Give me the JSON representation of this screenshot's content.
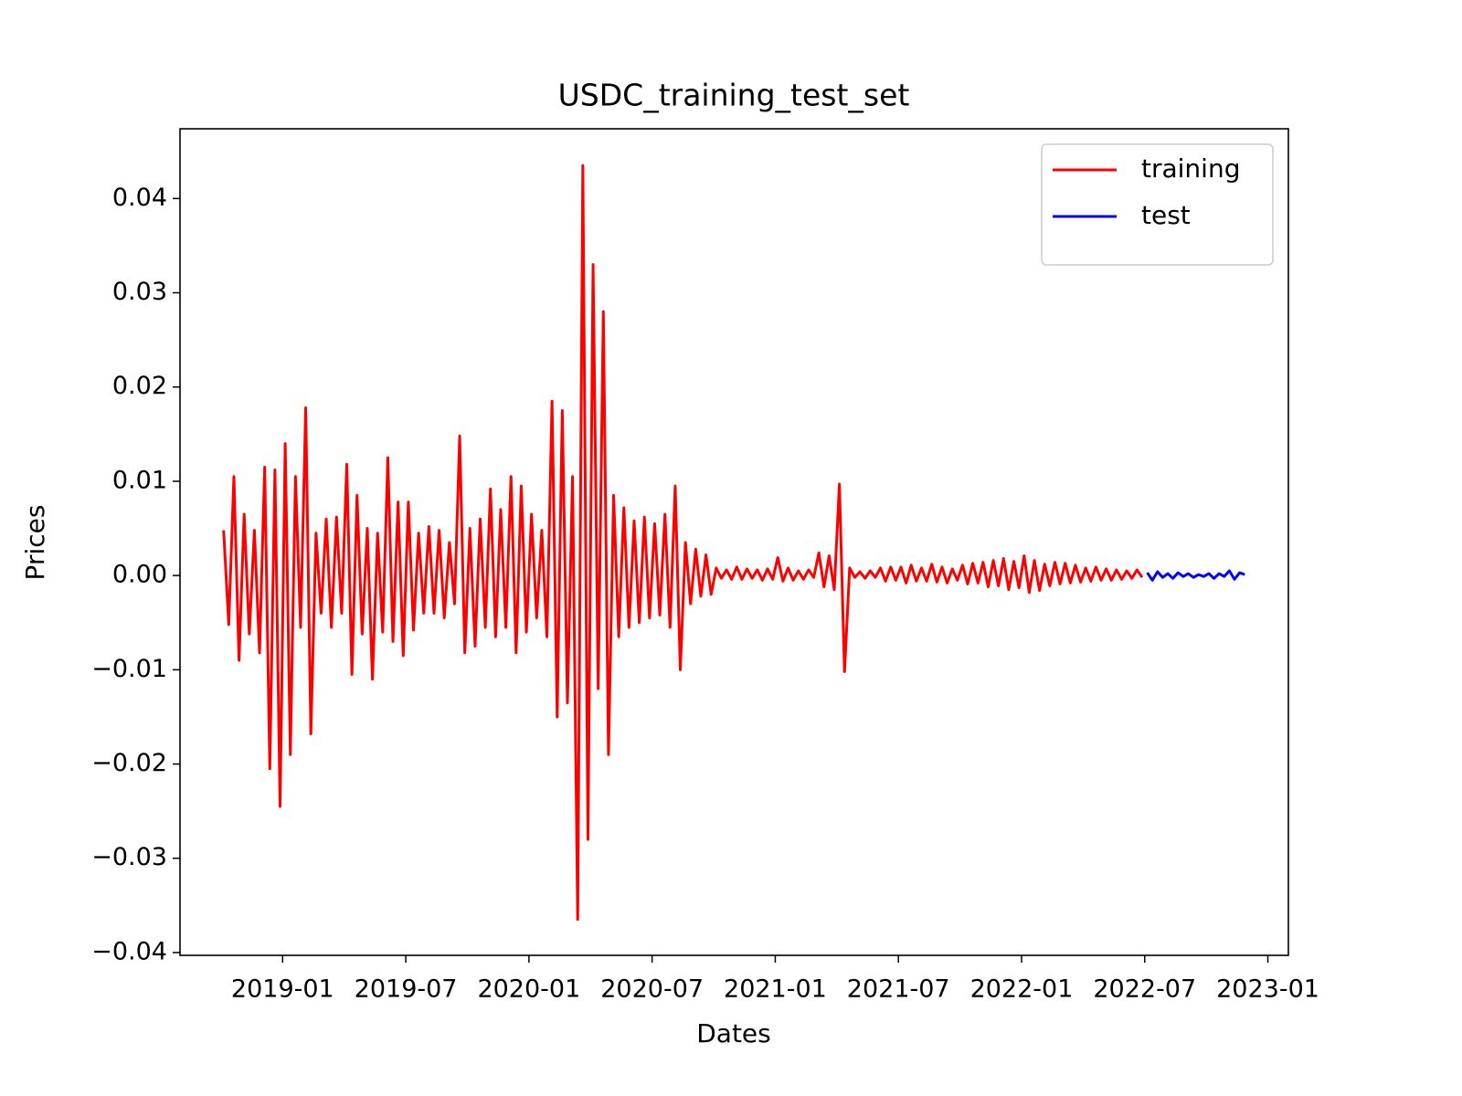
{
  "chart_data": {
    "type": "line",
    "title": "USDC_training_test_set",
    "x_label": "Dates",
    "y_label": "Prices",
    "legend": "upper right",
    "xlim": [
      "2018-08",
      "2023-02"
    ],
    "xticks": [
      "2019-01",
      "2019-07",
      "2020-01",
      "2020-07",
      "2021-01",
      "2021-07",
      "2022-01",
      "2022-07",
      "2023-01"
    ],
    "ylim": [
      -0.0403,
      0.0474
    ],
    "yticks": [
      {
        "value": -0.04,
        "label": "−0.04"
      },
      {
        "value": -0.03,
        "label": "−0.03"
      },
      {
        "value": -0.02,
        "label": "−0.02"
      },
      {
        "value": -0.01,
        "label": "−0.01"
      },
      {
        "value": 0,
        "label": "0.00"
      },
      0.01,
      0.02,
      0.03,
      0.04
    ],
    "series": [
      {
        "name": "training",
        "color": "#ff0000",
        "x": [
          "2018-10",
          "2018-10",
          "2018-10",
          "2018-10",
          "2018-11",
          "2018-11",
          "2018-11",
          "2018-11",
          "2018-12",
          "2018-12",
          "2018-12",
          "2018-12",
          "2019-01",
          "2019-01",
          "2019-01",
          "2019-01",
          "2019-02",
          "2019-02",
          "2019-02",
          "2019-02",
          "2019-03",
          "2019-03",
          "2019-03",
          "2019-03",
          "2019-04",
          "2019-04",
          "2019-04",
          "2019-04",
          "2019-05",
          "2019-05",
          "2019-05",
          "2019-05",
          "2019-06",
          "2019-06",
          "2019-06",
          "2019-06",
          "2019-07",
          "2019-07",
          "2019-07",
          "2019-07",
          "2019-08",
          "2019-08",
          "2019-08",
          "2019-08",
          "2019-09",
          "2019-09",
          "2019-09",
          "2019-09",
          "2019-10",
          "2019-10",
          "2019-10",
          "2019-10",
          "2019-11",
          "2019-11",
          "2019-11",
          "2019-11",
          "2019-12",
          "2019-12",
          "2019-12",
          "2019-12",
          "2020-01",
          "2020-01",
          "2020-01",
          "2020-01",
          "2020-02",
          "2020-02",
          "2020-02",
          "2020-02",
          "2020-03",
          "2020-03",
          "2020-03",
          "2020-03",
          "2020-04",
          "2020-04",
          "2020-04",
          "2020-04",
          "2020-05",
          "2020-05",
          "2020-05",
          "2020-05",
          "2020-06",
          "2020-06",
          "2020-06",
          "2020-06",
          "2020-07",
          "2020-07",
          "2020-07",
          "2020-07",
          "2020-08",
          "2020-08",
          "2020-08",
          "2020-08",
          "2020-09",
          "2020-09",
          "2020-09",
          "2020-09",
          "2020-10",
          "2020-10",
          "2020-10",
          "2020-10",
          "2020-11",
          "2020-11",
          "2020-11",
          "2020-11",
          "2020-12",
          "2020-12",
          "2020-12",
          "2020-12",
          "2021-01",
          "2021-01",
          "2021-01",
          "2021-01",
          "2021-02",
          "2021-02",
          "2021-02",
          "2021-02",
          "2021-03",
          "2021-03",
          "2021-03",
          "2021-03",
          "2021-04",
          "2021-04",
          "2021-04",
          "2021-04",
          "2021-05",
          "2021-05",
          "2021-05",
          "2021-05",
          "2021-06",
          "2021-06",
          "2021-06",
          "2021-06",
          "2021-07",
          "2021-07",
          "2021-07",
          "2021-07",
          "2021-08",
          "2021-08",
          "2021-08",
          "2021-08",
          "2021-09",
          "2021-09",
          "2021-09",
          "2021-09",
          "2021-10",
          "2021-10",
          "2021-10",
          "2021-10",
          "2021-11",
          "2021-11",
          "2021-11",
          "2021-11",
          "2021-12",
          "2021-12",
          "2021-12",
          "2021-12",
          "2022-01",
          "2022-01",
          "2022-01",
          "2022-01",
          "2022-02",
          "2022-02",
          "2022-02",
          "2022-02",
          "2022-03",
          "2022-03",
          "2022-03",
          "2022-03",
          "2022-04",
          "2022-04",
          "2022-04",
          "2022-04",
          "2022-05",
          "2022-05",
          "2022-05",
          "2022-05",
          "2022-06",
          "2022-06",
          "2022-06",
          "2022-06"
        ],
        "values": [
          0.0048,
          -0.0052,
          0.0105,
          -0.009,
          0.0065,
          -0.0062,
          0.0048,
          -0.0082,
          0.0115,
          -0.0205,
          0.0112,
          -0.0245,
          0.014,
          -0.019,
          0.0105,
          -0.0055,
          0.0178,
          -0.0168,
          0.0045,
          -0.004,
          0.006,
          -0.0055,
          0.0062,
          -0.004,
          0.0118,
          -0.0105,
          0.0085,
          -0.0062,
          0.005,
          -0.011,
          0.0045,
          -0.006,
          0.0125,
          -0.007,
          0.0078,
          -0.0085,
          0.0078,
          -0.0058,
          0.0045,
          -0.004,
          0.0052,
          -0.004,
          0.0048,
          -0.0045,
          0.0035,
          -0.003,
          0.0148,
          -0.0082,
          0.005,
          -0.0075,
          0.006,
          -0.0055,
          0.0092,
          -0.0065,
          0.007,
          -0.0055,
          0.0105,
          -0.0082,
          0.0095,
          -0.006,
          0.0065,
          -0.0045,
          0.0048,
          -0.0065,
          0.0185,
          -0.015,
          0.0175,
          -0.0135,
          0.0105,
          -0.0365,
          0.0435,
          -0.028,
          0.033,
          -0.012,
          0.028,
          -0.019,
          0.0085,
          -0.0065,
          0.0072,
          -0.0055,
          0.0058,
          -0.005,
          0.0062,
          -0.0045,
          0.0055,
          -0.0042,
          0.0065,
          -0.0055,
          0.0095,
          -0.01,
          0.0035,
          -0.003,
          0.0028,
          -0.0022,
          0.0022,
          -0.002,
          0.0008,
          -0.0003,
          0.0006,
          -0.0004,
          0.0009,
          -0.0004,
          0.0007,
          -0.0003,
          0.0006,
          -0.0005,
          0.0007,
          -0.0004,
          0.0019,
          -0.0006,
          0.0008,
          -0.0005,
          0.0005,
          -0.0004,
          0.0006,
          -0.0002,
          0.0024,
          -0.0012,
          0.0021,
          -0.0015,
          0.0097,
          -0.0102,
          0.0008,
          -0.0002,
          0.0004,
          -0.0003,
          0.0005,
          -0.0002,
          0.0008,
          -0.0006,
          0.0009,
          -0.0005,
          0.0009,
          -0.0008,
          0.0011,
          -0.0006,
          0.0008,
          -0.0006,
          0.0012,
          -0.0007,
          0.0009,
          -0.0008,
          0.0007,
          -0.0005,
          0.0011,
          -0.0009,
          0.0013,
          -0.0008,
          0.0014,
          -0.0012,
          0.0016,
          -0.0011,
          0.0018,
          -0.0015,
          0.0015,
          -0.0013,
          0.0021,
          -0.0018,
          0.0016,
          -0.0016,
          0.0012,
          -0.0011,
          0.0014,
          -0.0009,
          0.0013,
          -0.0008,
          0.0011,
          -0.0007,
          0.0008,
          -0.0006,
          0.0009,
          -0.0005,
          0.0007,
          -0.0005,
          0.0006,
          -0.0004,
          0.0005,
          -0.0003,
          0.0006,
          -0.0002
        ]
      },
      {
        "name": "test",
        "color": "#0000ff",
        "x": [
          "2022-07",
          "2022-07",
          "2022-07",
          "2022-07",
          "2022-08",
          "2022-08",
          "2022-08",
          "2022-08",
          "2022-09",
          "2022-09",
          "2022-09",
          "2022-09",
          "2022-10",
          "2022-10",
          "2022-10",
          "2022-10",
          "2022-11",
          "2022-11",
          "2022-11",
          "2022-11"
        ],
        "values": [
          0.0003,
          -0.0005,
          0.0004,
          -0.0002,
          0.0002,
          -0.0003,
          0.0003,
          -0.0001,
          0.0002,
          -0.0002,
          0.0001,
          -0.0001,
          0.0002,
          -0.0003,
          0.0002,
          -0.0001,
          0.0005,
          -0.0004,
          0.0003,
          0.0001
        ]
      }
    ]
  }
}
